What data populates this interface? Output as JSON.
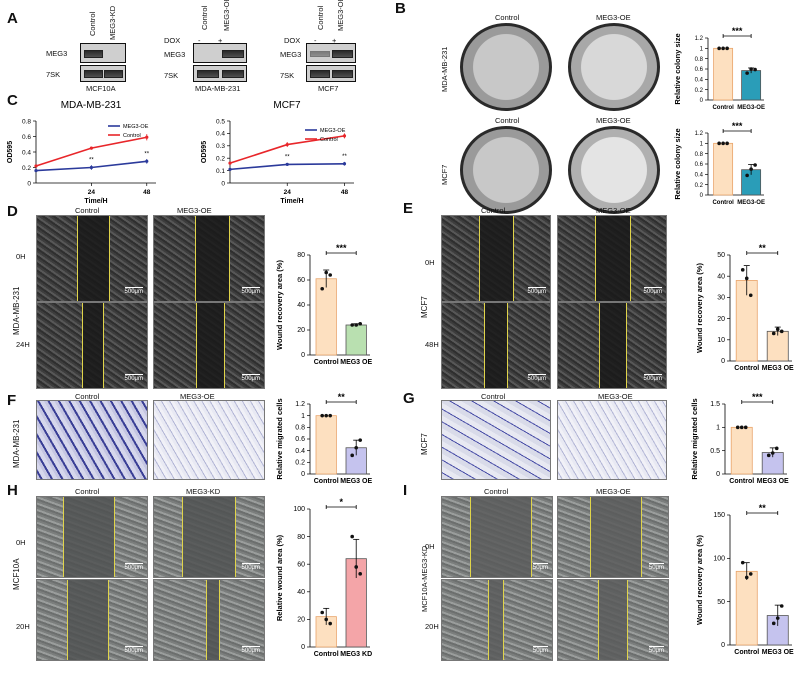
{
  "panels": {
    "A": "A",
    "B": "B",
    "C": "C",
    "D": "D",
    "E": "E",
    "F": "F",
    "G": "G",
    "H": "H",
    "I": "I"
  },
  "panelA": {
    "blot1": {
      "lane1": "Control",
      "lane2": "MEG3-KD",
      "row1": "MEG3",
      "row2": "7SK",
      "caption": "MCF10A"
    },
    "blot2": {
      "dox": "DOX",
      "minus": "-",
      "plus": "+",
      "lane1": "Control",
      "lane2": "MEG3-OE",
      "row1": "MEG3",
      "row2": "7SK",
      "caption": "MDA-MB-231"
    },
    "blot3": {
      "dox": "DOX",
      "minus": "-",
      "plus": "+",
      "lane1": "Control",
      "lane2": "MEG3-OE",
      "row1": "MEG3",
      "row2": "7SK",
      "caption": "MCF7"
    }
  },
  "panelB": {
    "col_control": "Control",
    "col_oe": "MEG3-OE",
    "row1": "MDA-MB-231",
    "row2": "MCF7",
    "ylabel": "Relative colony size",
    "sig": "***",
    "cat1": "Control",
    "cat2": "MEG3-OE"
  },
  "panelC": {
    "ylabel": "OD595",
    "xlabel": "Time/H",
    "legend_oe": "MEG3-OE",
    "legend_ctrl": "Control",
    "sig": "**"
  },
  "panelD": {
    "col_control": "Control",
    "col_oe": "MEG3-OE",
    "row1": "0H",
    "row2": "24H",
    "cell": "MDA-MB-231",
    "scale": "500μm",
    "ylabel": "Wound recovery area (%)",
    "sig": "***",
    "cat1": "Control",
    "cat2": "MEG3 OE"
  },
  "panelE": {
    "col_control": "Control",
    "col_oe": "MEG3-OE",
    "row1": "0H",
    "row2": "48H",
    "cell": "MCF7",
    "scale": "500μm",
    "ylabel": "Wound recovery area (%)",
    "sig": "**",
    "cat1": "Control",
    "cat2": "MEG3 OE"
  },
  "panelF": {
    "col_control": "Control",
    "col_oe": "MEG3-OE",
    "cell": "MDA-MB-231",
    "ylabel": "Relative migrated cells",
    "sig": "**",
    "cat1": "Control",
    "cat2": "MEG3 OE"
  },
  "panelG": {
    "col_control": "Control",
    "col_oe": "MEG3-OE",
    "cell": "MCF7",
    "ylabel": "Relative migrated cells",
    "sig": "***",
    "cat1": "Control",
    "cat2": "MEG3 OE"
  },
  "panelH": {
    "col_control": "Control",
    "col_kd": "MEG3-KD",
    "row1": "0H",
    "row2": "20H",
    "cell": "MCF10A",
    "scale": "500μm",
    "ylabel": "Relative wound area (%)",
    "sig": "*",
    "cat1": "Control",
    "cat2": "MEG3 KD"
  },
  "panelI": {
    "col_control": "Control",
    "col_oe": "MEG3-OE",
    "row1": "0H",
    "row2": "20H",
    "cell": "MCF10A-MEG3-KD",
    "scale": "50μm",
    "ylabel": "Wound recovery area (%)",
    "sig": "**",
    "cat1": "Control",
    "cat2": "MEG3 OE"
  },
  "colors": {
    "control_bar": "#fde0c0",
    "control_edge": "#e9a46a",
    "oe_teal": "#2a9db8",
    "oe_green": "#b9e0b0",
    "oe_lilac": "#c5c3ee",
    "kd_pink": "#f4a5a8",
    "line_red": "#e8262a",
    "line_blue": "#2b3a9b"
  },
  "chart_data": [
    {
      "id": "B-top",
      "type": "bar",
      "categories": [
        "Control",
        "MEG3-OE"
      ],
      "values": [
        1.0,
        0.57
      ],
      "points": [
        [
          1.0,
          1.0,
          1.0
        ],
        [
          0.52,
          0.6,
          0.59
        ]
      ],
      "errors": [
        0,
        0.05
      ],
      "yticks": [
        0,
        0.2,
        0.4,
        0.6,
        0.8,
        1.0,
        1.2
      ],
      "ylim": [
        0,
        1.2
      ],
      "ylabel": "Relative colony size",
      "sig": "***",
      "colors": [
        "#fde0c0",
        "#2a9db8"
      ]
    },
    {
      "id": "B-bottom",
      "type": "bar",
      "categories": [
        "Control",
        "MEG3-OE"
      ],
      "values": [
        1.0,
        0.49
      ],
      "points": [
        [
          1.0,
          1.0,
          1.0
        ],
        [
          0.38,
          0.5,
          0.58
        ]
      ],
      "errors": [
        0,
        0.1
      ],
      "yticks": [
        0,
        0.2,
        0.4,
        0.6,
        0.8,
        1.0,
        1.2
      ],
      "ylim": [
        0,
        1.2
      ],
      "ylabel": "Relative colony size",
      "sig": "***",
      "colors": [
        "#fde0c0",
        "#2a9db8"
      ]
    },
    {
      "id": "C-left",
      "type": "line",
      "title": "MDA-MB-231",
      "x": [
        0,
        24,
        48
      ],
      "xticks": [
        24,
        48
      ],
      "yticks": [
        0,
        0.2,
        0.4,
        0.6,
        0.8
      ],
      "ylim": [
        0,
        0.8
      ],
      "xlim": [
        0,
        52
      ],
      "xlabel": "Time/H",
      "ylabel": "OD595",
      "series": [
        {
          "name": "MEG3-OE",
          "values": [
            0.16,
            0.2,
            0.28
          ],
          "err": [
            0,
            0.03,
            0.03
          ],
          "color": "#2b3a9b"
        },
        {
          "name": "Control",
          "values": [
            0.22,
            0.45,
            0.59
          ],
          "err": [
            0,
            0.02,
            0.04
          ],
          "color": "#e8262a"
        }
      ],
      "sig_points": [
        24,
        48
      ],
      "sig": "**"
    },
    {
      "id": "C-right",
      "type": "line",
      "title": "MCF7",
      "x": [
        0,
        24,
        48
      ],
      "xticks": [
        24,
        48
      ],
      "yticks": [
        0,
        0.1,
        0.2,
        0.3,
        0.4,
        0.5
      ],
      "ylim": [
        0,
        0.5
      ],
      "xlim": [
        0,
        52
      ],
      "xlabel": "Time/H",
      "ylabel": "OD595",
      "series": [
        {
          "name": "MEG3-OE",
          "values": [
            0.11,
            0.15,
            0.155
          ],
          "err": [
            0,
            0.01,
            0.015
          ],
          "color": "#2b3a9b"
        },
        {
          "name": "Control",
          "values": [
            0.16,
            0.31,
            0.38
          ],
          "err": [
            0,
            0.02,
            0.02
          ],
          "color": "#e8262a"
        }
      ],
      "sig_points": [
        24,
        48
      ],
      "sig": "**"
    },
    {
      "id": "D",
      "type": "bar",
      "categories": [
        "Control",
        "MEG3 OE"
      ],
      "values": [
        61,
        24
      ],
      "points": [
        [
          53,
          66,
          64
        ],
        [
          24,
          24,
          25
        ]
      ],
      "errors": [
        7,
        1
      ],
      "yticks": [
        0,
        20,
        40,
        60,
        80
      ],
      "ylim": [
        0,
        80
      ],
      "ylabel": "Wound recovery area (%)",
      "sig": "***",
      "colors": [
        "#fde0c0",
        "#b9e0b0"
      ]
    },
    {
      "id": "E",
      "type": "bar",
      "categories": [
        "Control",
        "MEG3 OE"
      ],
      "values": [
        38,
        14
      ],
      "points": [
        [
          43,
          39,
          31
        ],
        [
          13,
          15,
          14
        ]
      ],
      "errors": [
        7,
        2
      ],
      "yticks": [
        0,
        10,
        20,
        30,
        40,
        50
      ],
      "ylim": [
        0,
        50
      ],
      "ylabel": "Wound recovery area (%)",
      "sig": "**",
      "colors": [
        "#fde0c0",
        "#fde0c0"
      ]
    },
    {
      "id": "F",
      "type": "bar",
      "categories": [
        "Control",
        "MEG3 OE"
      ],
      "values": [
        1.0,
        0.45
      ],
      "points": [
        [
          1.0,
          1.0,
          1.0
        ],
        [
          0.32,
          0.45,
          0.58
        ]
      ],
      "errors": [
        0,
        0.13
      ],
      "yticks": [
        0,
        0.2,
        0.4,
        0.6,
        0.8,
        1.0,
        1.2
      ],
      "ylim": [
        0,
        1.2
      ],
      "ylabel": "Relative migrated cells",
      "sig": "**",
      "colors": [
        "#fde0c0",
        "#c5c3ee"
      ]
    },
    {
      "id": "G",
      "type": "bar",
      "categories": [
        "Control",
        "MEG3 OE"
      ],
      "values": [
        1.0,
        0.46
      ],
      "points": [
        [
          1.0,
          1.0,
          1.0
        ],
        [
          0.4,
          0.45,
          0.55
        ]
      ],
      "errors": [
        0,
        0.1
      ],
      "yticks": [
        0,
        0.5,
        1.0,
        1.5
      ],
      "ylim": [
        0,
        1.5
      ],
      "ylabel": "Relative migrated cells",
      "sig": "***",
      "colors": [
        "#fde0c0",
        "#c5c3ee"
      ]
    },
    {
      "id": "H",
      "type": "bar",
      "categories": [
        "Control",
        "MEG3 KD"
      ],
      "values": [
        22,
        64
      ],
      "points": [
        [
          25,
          20,
          17
        ],
        [
          80,
          58,
          53
        ]
      ],
      "errors": [
        6,
        14
      ],
      "yticks": [
        0,
        20,
        40,
        60,
        80,
        100
      ],
      "ylim": [
        0,
        100
      ],
      "ylabel": "Relative wound area (%)",
      "sig": "*",
      "colors": [
        "#fde0c0",
        "#f4a5a8"
      ]
    },
    {
      "id": "I",
      "type": "bar",
      "categories": [
        "Control",
        "MEG3 OE"
      ],
      "values": [
        85,
        34
      ],
      "points": [
        [
          95,
          78,
          82
        ],
        [
          25,
          31,
          45
        ]
      ],
      "errors": [
        10,
        12
      ],
      "yticks": [
        0,
        50,
        100,
        150
      ],
      "ylim": [
        0,
        150
      ],
      "ylabel": "Wound recovery area (%)",
      "sig": "**",
      "colors": [
        "#fde0c0",
        "#c5c3ee"
      ]
    }
  ]
}
